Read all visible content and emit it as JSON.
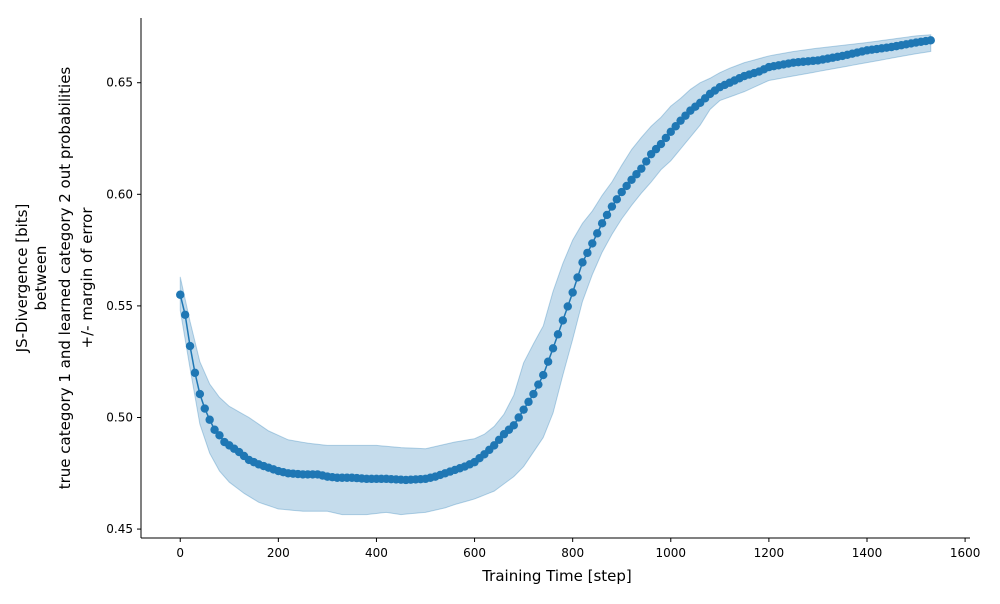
{
  "chart_data": {
    "type": "line",
    "title": "",
    "xlabel": "Training Time [step]",
    "ylabel_lines": [
      "JS-Divergence [bits]",
      "between",
      "true category 1 and learned category 2 out probabilities",
      "+/- margin of error"
    ],
    "xlim": [
      -80,
      1610
    ],
    "ylim": [
      0.446,
      0.679
    ],
    "xticks": [
      0,
      200,
      400,
      600,
      800,
      1000,
      1200,
      1400,
      1600
    ],
    "yticks": [
      0.45,
      0.5,
      0.55,
      0.6,
      0.65
    ],
    "grid": false,
    "colors": {
      "line": "#1f77b4",
      "band": "#1f77b4"
    },
    "mean_knots": [
      [
        0,
        0.555
      ],
      [
        10,
        0.546
      ],
      [
        20,
        0.532
      ],
      [
        30,
        0.52
      ],
      [
        40,
        0.5105
      ],
      [
        50,
        0.504
      ],
      [
        60,
        0.499
      ],
      [
        70,
        0.4945
      ],
      [
        80,
        0.492
      ],
      [
        90,
        0.489
      ],
      [
        100,
        0.4875
      ],
      [
        120,
        0.4845
      ],
      [
        140,
        0.481
      ],
      [
        160,
        0.479
      ],
      [
        180,
        0.4775
      ],
      [
        200,
        0.476
      ],
      [
        220,
        0.475
      ],
      [
        250,
        0.4745
      ],
      [
        280,
        0.4745
      ],
      [
        300,
        0.4735
      ],
      [
        320,
        0.473
      ],
      [
        350,
        0.473
      ],
      [
        380,
        0.4725
      ],
      [
        420,
        0.4725
      ],
      [
        460,
        0.472
      ],
      [
        500,
        0.4725
      ],
      [
        520,
        0.4735
      ],
      [
        540,
        0.475
      ],
      [
        560,
        0.4765
      ],
      [
        580,
        0.478
      ],
      [
        600,
        0.48
      ],
      [
        620,
        0.4835
      ],
      [
        640,
        0.4875
      ],
      [
        660,
        0.4925
      ],
      [
        680,
        0.4965
      ],
      [
        700,
        0.5035
      ],
      [
        720,
        0.5105
      ],
      [
        740,
        0.519
      ],
      [
        760,
        0.531
      ],
      [
        780,
        0.5435
      ],
      [
        800,
        0.556
      ],
      [
        820,
        0.5695
      ],
      [
        840,
        0.578
      ],
      [
        860,
        0.587
      ],
      [
        880,
        0.5945
      ],
      [
        900,
        0.601
      ],
      [
        920,
        0.6065
      ],
      [
        940,
        0.6115
      ],
      [
        960,
        0.618
      ],
      [
        980,
        0.6225
      ],
      [
        1000,
        0.628
      ],
      [
        1020,
        0.633
      ],
      [
        1040,
        0.6375
      ],
      [
        1060,
        0.641
      ],
      [
        1080,
        0.645
      ],
      [
        1100,
        0.648
      ],
      [
        1120,
        0.65
      ],
      [
        1150,
        0.653
      ],
      [
        1180,
        0.655
      ],
      [
        1200,
        0.657
      ],
      [
        1250,
        0.659
      ],
      [
        1300,
        0.66
      ],
      [
        1350,
        0.662
      ],
      [
        1400,
        0.6645
      ],
      [
        1450,
        0.666
      ],
      [
        1500,
        0.668
      ],
      [
        1530,
        0.669
      ]
    ],
    "lower_knots": [
      [
        0,
        0.548
      ],
      [
        20,
        0.522
      ],
      [
        40,
        0.497
      ],
      [
        60,
        0.484
      ],
      [
        80,
        0.476
      ],
      [
        100,
        0.471
      ],
      [
        130,
        0.466
      ],
      [
        160,
        0.462
      ],
      [
        200,
        0.459
      ],
      [
        250,
        0.458
      ],
      [
        300,
        0.458
      ],
      [
        330,
        0.4565
      ],
      [
        380,
        0.4565
      ],
      [
        420,
        0.4575
      ],
      [
        450,
        0.4565
      ],
      [
        500,
        0.4575
      ],
      [
        540,
        0.4595
      ],
      [
        560,
        0.461
      ],
      [
        600,
        0.4635
      ],
      [
        640,
        0.467
      ],
      [
        680,
        0.4735
      ],
      [
        700,
        0.478
      ],
      [
        720,
        0.4845
      ],
      [
        740,
        0.491
      ],
      [
        760,
        0.502
      ],
      [
        780,
        0.519
      ],
      [
        800,
        0.535
      ],
      [
        820,
        0.552
      ],
      [
        840,
        0.564
      ],
      [
        860,
        0.574
      ],
      [
        880,
        0.582
      ],
      [
        900,
        0.589
      ],
      [
        920,
        0.595
      ],
      [
        940,
        0.6005
      ],
      [
        960,
        0.6055
      ],
      [
        980,
        0.611
      ],
      [
        1000,
        0.615
      ],
      [
        1030,
        0.623
      ],
      [
        1060,
        0.631
      ],
      [
        1080,
        0.638
      ],
      [
        1100,
        0.642
      ],
      [
        1150,
        0.646
      ],
      [
        1200,
        0.651
      ],
      [
        1300,
        0.655
      ],
      [
        1400,
        0.659
      ],
      [
        1500,
        0.663
      ],
      [
        1530,
        0.664
      ]
    ],
    "upper_knots": [
      [
        0,
        0.563
      ],
      [
        20,
        0.543
      ],
      [
        40,
        0.525
      ],
      [
        60,
        0.515
      ],
      [
        80,
        0.509
      ],
      [
        100,
        0.505
      ],
      [
        140,
        0.5
      ],
      [
        180,
        0.494
      ],
      [
        220,
        0.49
      ],
      [
        260,
        0.4885
      ],
      [
        300,
        0.4875
      ],
      [
        350,
        0.4875
      ],
      [
        400,
        0.4875
      ],
      [
        450,
        0.4865
      ],
      [
        500,
        0.486
      ],
      [
        540,
        0.488
      ],
      [
        560,
        0.489
      ],
      [
        600,
        0.4905
      ],
      [
        620,
        0.4925
      ],
      [
        640,
        0.496
      ],
      [
        660,
        0.5015
      ],
      [
        680,
        0.51
      ],
      [
        700,
        0.5245
      ],
      [
        720,
        0.533
      ],
      [
        740,
        0.541
      ],
      [
        760,
        0.5565
      ],
      [
        780,
        0.569
      ],
      [
        800,
        0.5795
      ],
      [
        820,
        0.587
      ],
      [
        840,
        0.5925
      ],
      [
        860,
        0.5995
      ],
      [
        880,
        0.6055
      ],
      [
        900,
        0.613
      ],
      [
        920,
        0.62
      ],
      [
        940,
        0.6255
      ],
      [
        960,
        0.6305
      ],
      [
        980,
        0.6345
      ],
      [
        1000,
        0.6395
      ],
      [
        1020,
        0.643
      ],
      [
        1040,
        0.647
      ],
      [
        1060,
        0.65
      ],
      [
        1080,
        0.652
      ],
      [
        1100,
        0.6545
      ],
      [
        1120,
        0.6565
      ],
      [
        1150,
        0.659
      ],
      [
        1200,
        0.662
      ],
      [
        1250,
        0.664
      ],
      [
        1300,
        0.6655
      ],
      [
        1400,
        0.668
      ],
      [
        1500,
        0.671
      ],
      [
        1530,
        0.6715
      ]
    ],
    "x_step": 10
  }
}
